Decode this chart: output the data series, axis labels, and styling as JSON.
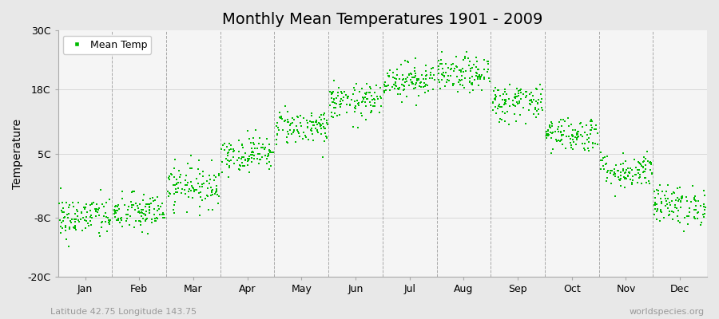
{
  "title": "Monthly Mean Temperatures 1901 - 2009",
  "ylabel": "Temperature",
  "xlabel_bottom_left": "Latitude 42.75 Longitude 143.75",
  "xlabel_bottom_right": "worldspecies.org",
  "ytick_labels": [
    "-20C",
    "-8C",
    "5C",
    "18C",
    "30C"
  ],
  "ytick_values": [
    -20,
    -8,
    5,
    18,
    30
  ],
  "ylim": [
    -20,
    30
  ],
  "months": [
    "Jan",
    "Feb",
    "Mar",
    "Apr",
    "May",
    "Jun",
    "Jul",
    "Aug",
    "Sep",
    "Oct",
    "Nov",
    "Dec"
  ],
  "month_means": [
    -8.0,
    -7.0,
    -1.5,
    5.0,
    10.5,
    15.5,
    20.0,
    21.0,
    15.5,
    9.0,
    1.5,
    -5.5
  ],
  "month_stds": [
    2.2,
    2.0,
    2.2,
    1.8,
    1.8,
    1.8,
    1.8,
    1.8,
    2.0,
    1.8,
    1.8,
    2.0
  ],
  "n_years": 109,
  "dot_color": "#00bb00",
  "dot_size": 3,
  "outer_background": "#e8e8e8",
  "plot_background": "#f5f5f5",
  "grid_color": "#888888",
  "title_fontsize": 14,
  "axis_label_fontsize": 10,
  "tick_fontsize": 9,
  "legend_fontsize": 9
}
